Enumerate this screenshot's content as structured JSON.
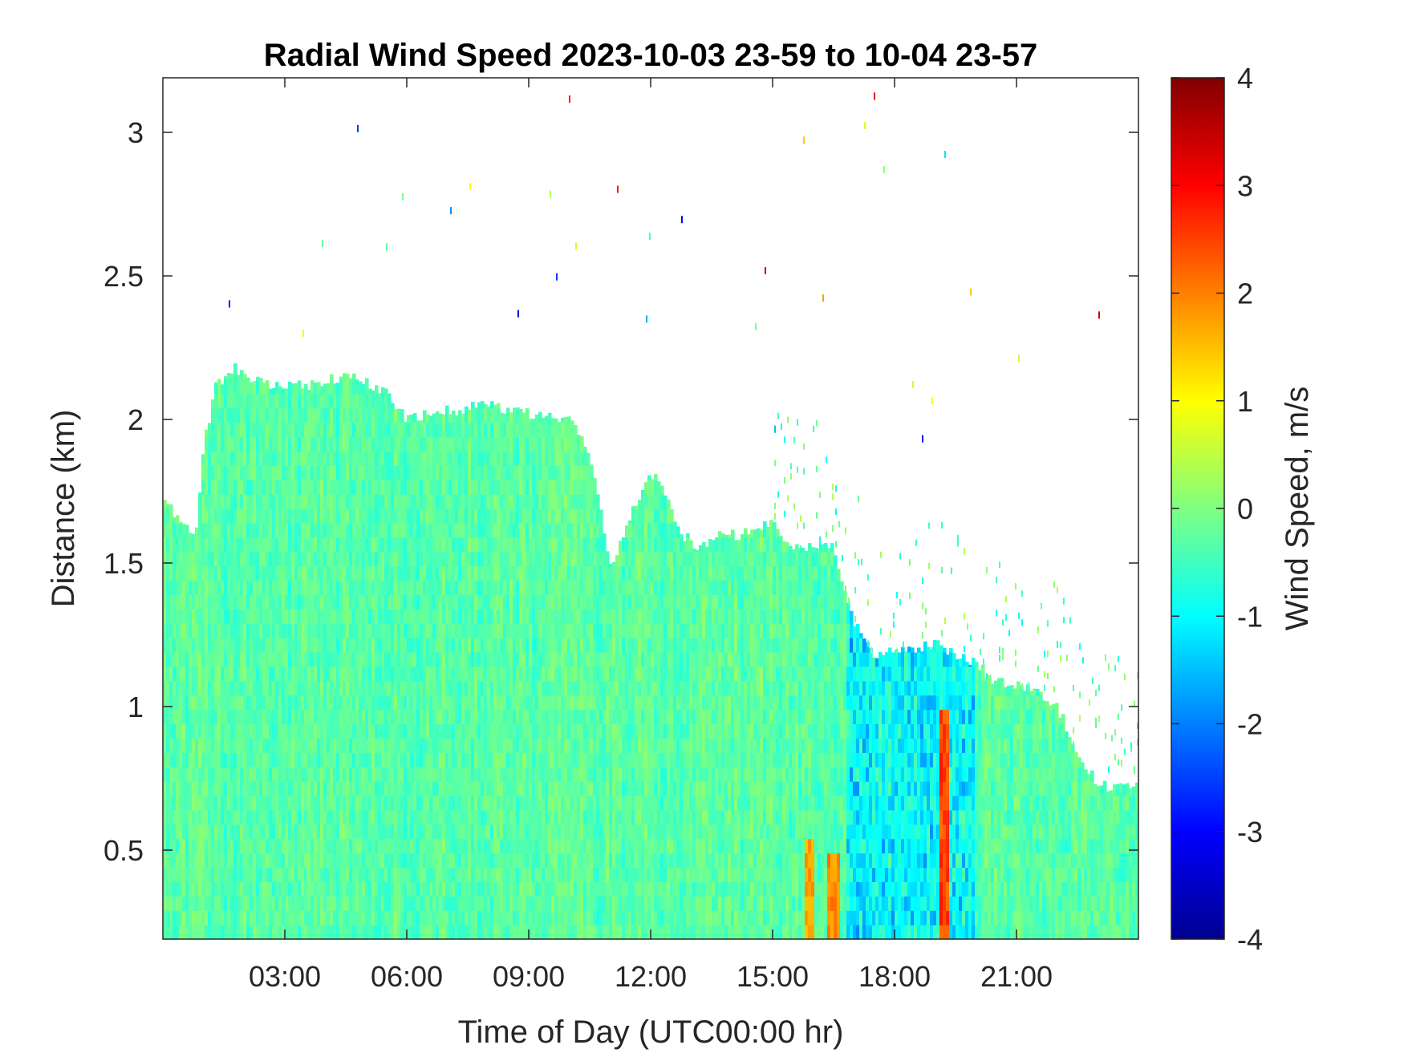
{
  "chart_data": {
    "type": "heatmap",
    "title": "Radial Wind Speed 2023-10-03 23-59 to 10-04 23-57",
    "xlabel": "Time of Day (UTC00:00 hr)",
    "ylabel": "Distance (km)",
    "colorbar_label": "Wind Speed, m/s",
    "x_unit": "hours",
    "xlim": [
      0,
      24
    ],
    "ylim": [
      0.19,
      3.19
    ],
    "clim": [
      -4,
      4
    ],
    "colormap": "jet",
    "x_ticks": [
      3,
      6,
      9,
      12,
      15,
      18,
      21
    ],
    "x_tick_labels": [
      "03:00",
      "06:00",
      "09:00",
      "12:00",
      "15:00",
      "18:00",
      "21:00"
    ],
    "y_ticks": [
      0.5,
      1,
      1.5,
      2,
      2.5,
      3
    ],
    "y_tick_labels": [
      "0.5",
      "1",
      "1.5",
      "2",
      "2.5",
      "3"
    ],
    "colorbar_ticks": [
      -4,
      -3,
      -2,
      -1,
      0,
      1,
      2,
      3,
      4
    ],
    "colorbar_tick_labels": [
      "-4",
      "-3",
      "-2",
      "-1",
      "0",
      "1",
      "2",
      "3",
      "4"
    ],
    "signal_top": {
      "x": [
        0,
        0.5,
        0.8,
        1.0,
        1.3,
        1.8,
        2.5,
        3.5,
        4.5,
        5.5,
        6.0,
        7.0,
        8.0,
        9.0,
        10.0,
        10.5,
        11.0,
        11.2,
        11.5,
        12.0,
        12.3,
        12.8,
        13.2,
        13.8,
        14.2,
        15.0,
        15.5,
        16.5,
        17.0,
        17.2,
        17.5,
        18.0,
        18.5,
        19.0,
        19.5,
        20.0,
        20.5,
        21.0,
        21.5,
        22.0,
        22.5,
        23.0,
        23.5,
        24.0
      ],
      "y": [
        1.75,
        1.62,
        1.6,
        1.9,
        2.12,
        2.18,
        2.12,
        2.12,
        2.15,
        2.1,
        2.0,
        2.03,
        2.05,
        2.02,
        2.0,
        1.88,
        1.5,
        1.55,
        1.67,
        1.82,
        1.75,
        1.6,
        1.55,
        1.6,
        1.6,
        1.65,
        1.55,
        1.55,
        1.3,
        1.25,
        1.18,
        1.2,
        1.2,
        1.22,
        1.18,
        1.15,
        1.08,
        1.08,
        1.06,
        1.0,
        0.85,
        0.72,
        0.73,
        0.72
      ]
    },
    "typical_value_m_s": -0.3,
    "negative_region": {
      "x": [
        16.8,
        20.0
      ],
      "y": [
        0.19,
        1.4
      ],
      "min_value_m_s": -2.5
    },
    "positive_streaks": [
      {
        "x": 15.9,
        "y": [
          0.19,
          0.5
        ],
        "value_m_s": 1.8
      },
      {
        "x": 16.5,
        "y": [
          0.19,
          0.45
        ],
        "value_m_s": 2.0
      },
      {
        "x": 19.2,
        "y": [
          0.19,
          0.95
        ],
        "value_m_s": 2.6
      }
    ]
  }
}
